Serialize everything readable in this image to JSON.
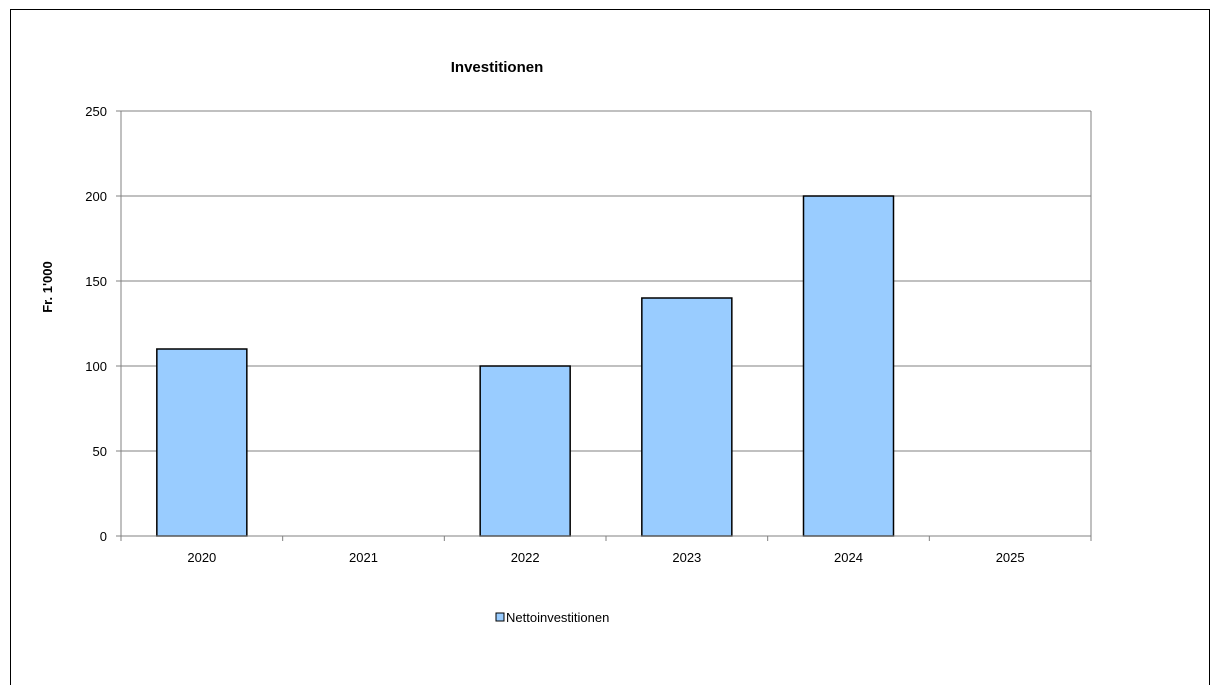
{
  "chart_data": {
    "type": "bar",
    "title": "Investitionen",
    "ylabel": "Fr. 1'000",
    "xlabel": "",
    "categories": [
      "2020",
      "2021",
      "2022",
      "2023",
      "2024",
      "2025"
    ],
    "series": [
      {
        "name": "Nettoinvestitionen",
        "values": [
          110,
          0,
          100,
          140,
          200,
          0
        ],
        "color": "#99ccff"
      }
    ],
    "ylim": [
      0,
      250
    ],
    "yticks": [
      0,
      50,
      100,
      150,
      200,
      250
    ],
    "grid": true,
    "legend_position": "bottom",
    "colors": {
      "bar_fill": "#99ccff",
      "bar_stroke": "#000000",
      "grid": "#808080",
      "axis": "#808080"
    }
  }
}
